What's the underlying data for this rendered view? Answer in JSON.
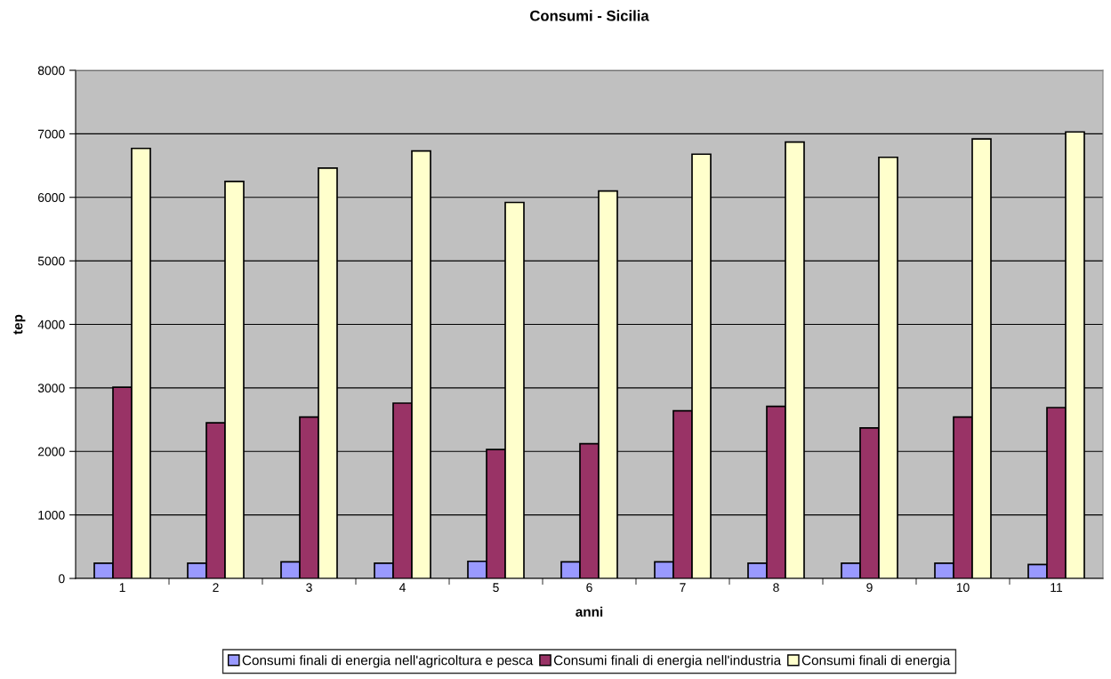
{
  "chart_data": {
    "type": "bar",
    "title": "Consumi - Sicilia",
    "xlabel": "anni",
    "ylabel": "tep",
    "categories": [
      "1",
      "2",
      "3",
      "4",
      "5",
      "6",
      "7",
      "8",
      "9",
      "10",
      "11"
    ],
    "series": [
      {
        "name": "Consumi finali di energia nell'agricoltura e pesca",
        "color": "#9999ff",
        "values": [
          240,
          240,
          260,
          240,
          270,
          260,
          260,
          240,
          240,
          240,
          220
        ]
      },
      {
        "name": "Consumi finali di energia nell'industria",
        "color": "#993366",
        "values": [
          3010,
          2450,
          2540,
          2760,
          2030,
          2120,
          2640,
          2710,
          2370,
          2540,
          2690
        ]
      },
      {
        "name": "Consumi finali di energia",
        "color": "#ffffcc",
        "values": [
          6770,
          6250,
          6460,
          6730,
          5920,
          6100,
          6680,
          6870,
          6630,
          6920,
          7030
        ]
      }
    ],
    "ylim": [
      0,
      8000
    ],
    "yticks": [
      0,
      1000,
      2000,
      3000,
      4000,
      5000,
      6000,
      7000,
      8000
    ],
    "grid": "y",
    "legend": "bottom"
  }
}
